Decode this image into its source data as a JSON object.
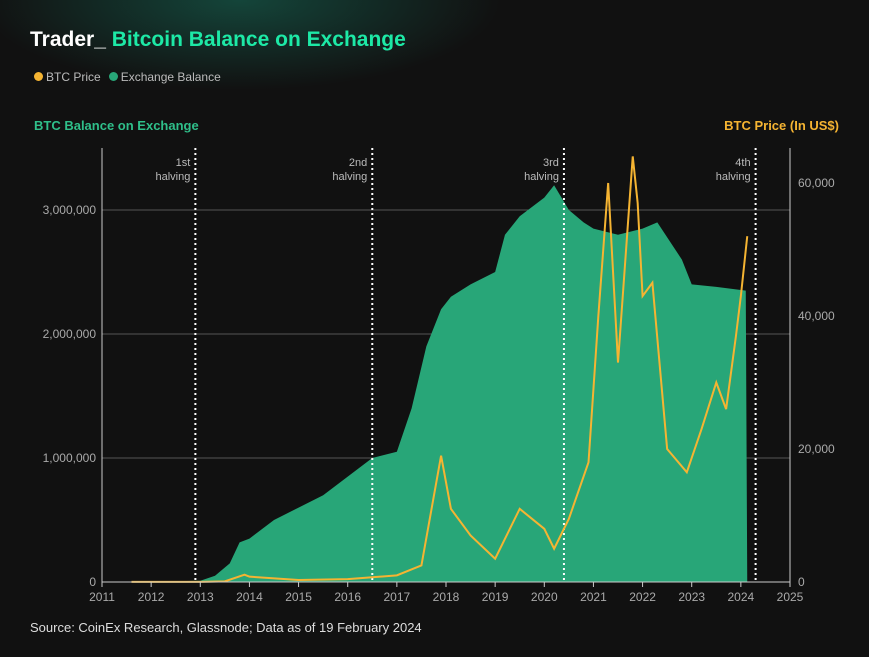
{
  "title_prefix": "Trader_",
  "title": "Bitcoin Balance on Exchange",
  "legend": [
    "BTC Price",
    "Exchange Balance"
  ],
  "colors": {
    "price": "#f5b432",
    "balance": "#28a678"
  },
  "chart_data": {
    "type": "area",
    "title": "Bitcoin Balance on Exchange",
    "left_axis_label": "BTC Balance on Exchange",
    "right_axis_label": "BTC Price (In US$)",
    "x_ticks": [
      "2011",
      "2012",
      "2013",
      "2014",
      "2015",
      "2016",
      "2017",
      "2018",
      "2019",
      "2020",
      "2021",
      "2022",
      "2023",
      "2024",
      "2025"
    ],
    "xlim": [
      2011,
      2025
    ],
    "left_ticks": [
      "0",
      "1,000,000",
      "2,000,000",
      "3,000,000"
    ],
    "left_ylim": [
      0,
      3500000
    ],
    "right_ticks": [
      "0",
      "20,000",
      "40,000",
      "60,000"
    ],
    "right_ylim": [
      0,
      65000
    ],
    "halvings": [
      {
        "x": 2012.9,
        "label": [
          "1st",
          "halving"
        ]
      },
      {
        "x": 2016.5,
        "label": [
          "2nd",
          "halving"
        ]
      },
      {
        "x": 2020.4,
        "label": [
          "3rd",
          "halving"
        ]
      },
      {
        "x": 2024.3,
        "label": [
          "4th",
          "halving"
        ]
      }
    ],
    "series": [
      {
        "name": "Exchange Balance",
        "axis": "left",
        "points": [
          [
            2011.6,
            0
          ],
          [
            2013.0,
            10000
          ],
          [
            2013.3,
            50000
          ],
          [
            2013.6,
            150000
          ],
          [
            2013.8,
            320000
          ],
          [
            2014,
            350000
          ],
          [
            2014.5,
            500000
          ],
          [
            2015,
            600000
          ],
          [
            2015.5,
            700000
          ],
          [
            2016,
            850000
          ],
          [
            2016.5,
            1000000
          ],
          [
            2017,
            1050000
          ],
          [
            2017.3,
            1400000
          ],
          [
            2017.6,
            1900000
          ],
          [
            2017.9,
            2200000
          ],
          [
            2018.1,
            2300000
          ],
          [
            2018.5,
            2400000
          ],
          [
            2019,
            2500000
          ],
          [
            2019.2,
            2800000
          ],
          [
            2019.5,
            2950000
          ],
          [
            2020,
            3100000
          ],
          [
            2020.2,
            3200000
          ],
          [
            2020.5,
            3000000
          ],
          [
            2020.8,
            2900000
          ],
          [
            2021,
            2850000
          ],
          [
            2021.5,
            2800000
          ],
          [
            2022,
            2850000
          ],
          [
            2022.3,
            2900000
          ],
          [
            2022.8,
            2600000
          ],
          [
            2023,
            2400000
          ],
          [
            2023.5,
            2380000
          ],
          [
            2024.1,
            2350000
          ],
          [
            2024.13,
            0
          ]
        ]
      },
      {
        "name": "BTC Price",
        "axis": "right",
        "points": [
          [
            2011.6,
            10
          ],
          [
            2013,
            13
          ],
          [
            2013.5,
            100
          ],
          [
            2013.9,
            1100
          ],
          [
            2014,
            800
          ],
          [
            2015,
            300
          ],
          [
            2016,
            430
          ],
          [
            2017,
            1000
          ],
          [
            2017.5,
            2500
          ],
          [
            2017.9,
            19000
          ],
          [
            2018.1,
            11000
          ],
          [
            2018.5,
            7000
          ],
          [
            2019,
            3500
          ],
          [
            2019.5,
            11000
          ],
          [
            2020,
            8000
          ],
          [
            2020.2,
            5000
          ],
          [
            2020.5,
            9500
          ],
          [
            2020.9,
            18000
          ],
          [
            2021.1,
            40000
          ],
          [
            2021.3,
            60000
          ],
          [
            2021.5,
            33000
          ],
          [
            2021.8,
            64000
          ],
          [
            2021.9,
            57000
          ],
          [
            2022,
            43000
          ],
          [
            2022.2,
            45000
          ],
          [
            2022.5,
            20000
          ],
          [
            2022.9,
            16500
          ],
          [
            2023.2,
            23000
          ],
          [
            2023.5,
            30000
          ],
          [
            2023.7,
            26000
          ],
          [
            2023.9,
            37000
          ],
          [
            2024,
            43000
          ],
          [
            2024.13,
            52000
          ]
        ]
      }
    ]
  },
  "source": "Source: CoinEx Research, Glassnode; Data as of 19 February 2024"
}
